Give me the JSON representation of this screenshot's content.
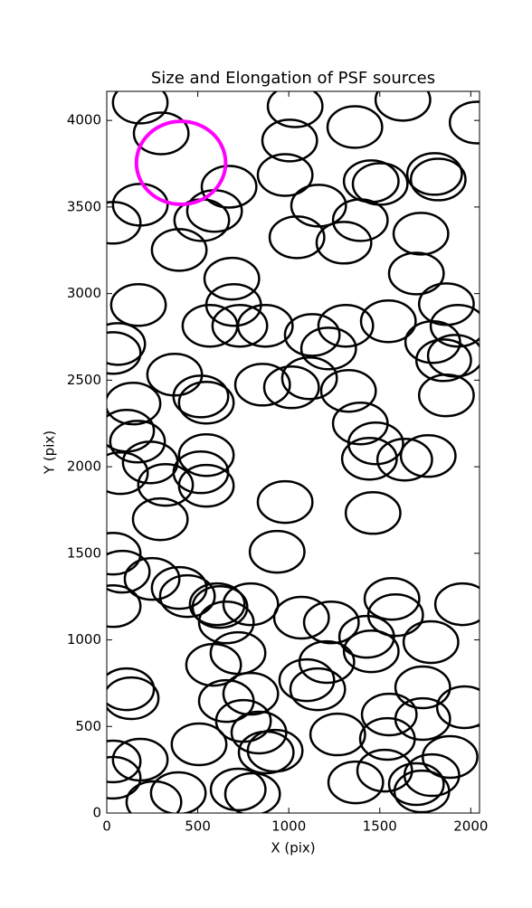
{
  "chart_data": {
    "type": "ellipse",
    "title": "Size and Elongation of PSF sources",
    "x_label": "X (pix)",
    "y_label": "Y (pix)",
    "xlim": [
      0,
      2048
    ],
    "ylim": [
      0,
      4168
    ],
    "xticks": [
      0,
      500,
      1000,
      1500,
      2000
    ],
    "yticks": [
      0,
      500,
      1000,
      1500,
      2000,
      2500,
      3000,
      3500,
      4000
    ],
    "series": [
      {
        "color": "#000000",
        "x": [
          184,
          299,
          672,
          184,
          35,
          522,
          592,
          398,
          687,
          174,
          697,
          567,
          731,
          871,
          60,
          35,
          373,
          517,
          547,
          144,
          109,
          169,
          239,
          75,
          547,
          517,
          547,
          323,
          294,
          856,
          1015,
          1114,
          1129,
          1219,
          1313,
          1547,
          1328,
          1393,
          1478,
          1443,
          1637,
          1766,
          1463,
          980,
          936,
          1791,
          1851,
          1915,
          1866,
          1930,
          1701,
          1726,
          1801,
          1821,
          1453,
          1502,
          1393,
          1303,
          1164,
          1045,
          980,
          1005,
          1035,
          1363,
          1627,
          2035,
          1866,
          35,
          85,
          249,
          398,
          443,
          35,
          607,
          622,
          657,
          791,
          1070,
          1234,
          1428,
          1453,
          1567,
          1587,
          1781,
          1955,
          721,
          587,
          109,
          134,
          657,
          791,
          1099,
          1159,
          1209,
          1736,
          1552,
          1736,
          1965,
          751,
          836,
          876,
          925,
          507,
          1269,
          1542,
          1886,
          184,
          35,
          35,
          259,
          393,
          722,
          801,
          1368,
          1527,
          1701,
          1731,
          1786
        ],
        "y": [
          4103,
          3925,
          3617,
          3513,
          3409,
          3424,
          3477,
          3252,
          3086,
          2934,
          2934,
          2814,
          2814,
          2814,
          2709,
          2657,
          2532,
          2406,
          2370,
          2365,
          2208,
          2145,
          2025,
          1963,
          2067,
          1968,
          1890,
          1895,
          1697,
          2474,
          2459,
          2511,
          2761,
          2683,
          2814,
          2840,
          2438,
          2250,
          2135,
          2046,
          2041,
          2062,
          1733,
          1796,
          1509,
          2720,
          2615,
          2641,
          2939,
          2814,
          3116,
          3346,
          3691,
          3659,
          3649,
          3633,
          3424,
          3294,
          3508,
          3325,
          3685,
          3884,
          4082,
          3962,
          4119,
          3988,
          2412,
          1498,
          1394,
          1352,
          1300,
          1253,
          1195,
          1206,
          1190,
          1101,
          1206,
          1128,
          1101,
          1018,
          934,
          1237,
          1143,
          987,
          1206,
          924,
          856,
          715,
          663,
          647,
          689,
          767,
          715,
          872,
          726,
          569,
          543,
          611,
          532,
          465,
          350,
          360,
          397,
          454,
          428,
          324,
          308,
          298,
          204,
          63,
          115,
          136,
          110,
          177,
          245,
          167,
          125,
          219
        ],
        "widths": [
          300,
          300,
          300,
          300,
          300,
          300,
          300,
          300,
          300,
          300,
          300,
          300,
          300,
          300,
          300,
          300,
          300,
          300,
          300,
          300,
          300,
          300,
          300,
          300,
          300,
          300,
          300,
          300,
          300,
          300,
          300,
          300,
          300,
          300,
          300,
          300,
          300,
          300,
          300,
          300,
          300,
          300,
          300,
          300,
          300,
          300,
          300,
          300,
          300,
          300,
          300,
          300,
          300,
          300,
          300,
          300,
          300,
          300,
          300,
          300,
          300,
          300,
          300,
          300,
          300,
          300,
          300,
          300,
          300,
          300,
          300,
          300,
          300,
          300,
          300,
          300,
          300,
          300,
          300,
          300,
          300,
          300,
          300,
          300,
          300,
          300,
          300,
          300,
          300,
          300,
          300,
          300,
          300,
          300,
          300,
          300,
          300,
          300,
          300,
          300,
          300,
          300,
          300,
          300,
          300,
          300,
          300,
          300,
          300,
          300,
          300,
          300,
          300,
          300,
          300,
          300,
          300,
          300
        ],
        "heights": [
          240,
          240,
          240,
          240,
          240,
          240,
          240,
          240,
          240,
          240,
          240,
          240,
          240,
          240,
          240,
          240,
          240,
          240,
          240,
          240,
          240,
          240,
          240,
          240,
          240,
          240,
          240,
          240,
          240,
          240,
          240,
          240,
          240,
          240,
          240,
          240,
          240,
          240,
          240,
          240,
          240,
          240,
          240,
          240,
          240,
          240,
          240,
          240,
          240,
          240,
          240,
          240,
          240,
          240,
          240,
          240,
          240,
          240,
          240,
          240,
          240,
          240,
          240,
          240,
          240,
          240,
          240,
          240,
          240,
          240,
          240,
          240,
          240,
          240,
          240,
          240,
          240,
          240,
          240,
          240,
          240,
          240,
          240,
          240,
          240,
          240,
          240,
          240,
          240,
          240,
          240,
          240,
          240,
          240,
          240,
          240,
          240,
          240,
          240,
          240,
          240,
          240,
          240,
          240,
          240,
          240,
          240,
          240,
          240,
          240,
          240,
          240,
          240,
          240,
          240,
          240,
          240,
          240
        ]
      },
      {
        "color": "#ff00ff",
        "x": [
          408
        ],
        "y": [
          3755
        ],
        "widths": [
          490
        ],
        "heights": [
          480
        ]
      }
    ]
  }
}
